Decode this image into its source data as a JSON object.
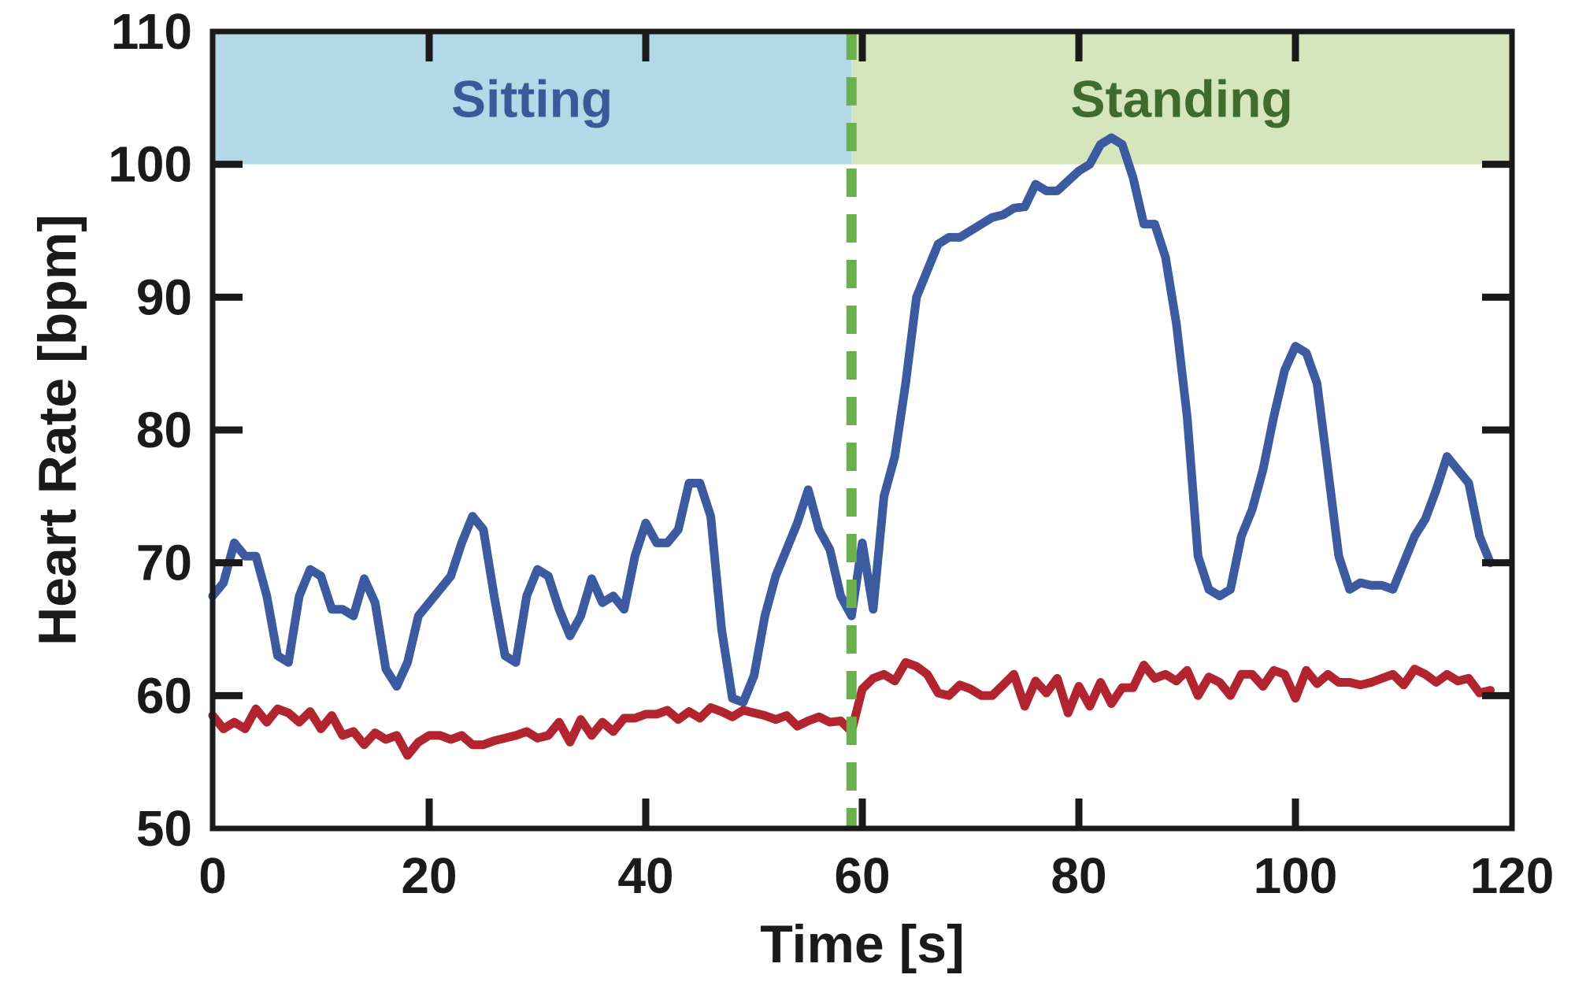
{
  "chart_data": {
    "type": "line",
    "title": "",
    "xlabel": "Time [s]",
    "ylabel": "Heart Rate [bpm]",
    "xlim": [
      0,
      120
    ],
    "ylim": [
      50,
      110
    ],
    "xticks": [
      0,
      20,
      40,
      60,
      80,
      100,
      120
    ],
    "yticks": [
      50,
      60,
      70,
      80,
      90,
      100,
      110
    ],
    "grid": false,
    "regions": [
      {
        "label": "Sitting",
        "x_start": 0,
        "x_end": 59,
        "y_start": 100,
        "y_end": 110,
        "fill": "#b3d9e8",
        "text_color": "#3b5998"
      },
      {
        "label": "Standing",
        "x_start": 59,
        "x_end": 120,
        "y_start": 100,
        "y_end": 110,
        "fill": "#d5e6bd",
        "text_color": "#3f6b2e"
      }
    ],
    "vline": {
      "x": 59,
      "color": "#6ab04c",
      "style": "dashed"
    },
    "series": [
      {
        "color": "#3b5aa0",
        "x": [
          0,
          1,
          2,
          3,
          4,
          5,
          6,
          7,
          8,
          9,
          10,
          11,
          12,
          13,
          14,
          15,
          16,
          17,
          18,
          19,
          21,
          22,
          23,
          24,
          25,
          26,
          27,
          28,
          29,
          30,
          31,
          32,
          33,
          34,
          35,
          36,
          37,
          38,
          39,
          40,
          41,
          42,
          43,
          44,
          45,
          46,
          47,
          48,
          49,
          50,
          51,
          52,
          53,
          54,
          55,
          56,
          57,
          58,
          59,
          60,
          61,
          62,
          63,
          64,
          65,
          66,
          67,
          68,
          69,
          70,
          71,
          72,
          73,
          74,
          75,
          76,
          77,
          78,
          80,
          81,
          82,
          83,
          84,
          85,
          86,
          87,
          88,
          89,
          90,
          91,
          92,
          93,
          94,
          95,
          96,
          97,
          98,
          99,
          100,
          101,
          102,
          103,
          104,
          105,
          106,
          107,
          108,
          109,
          110,
          111,
          112,
          113,
          114,
          115,
          116,
          117,
          118
        ],
        "values": [
          67.5,
          68.5,
          71.5,
          70.5,
          70.5,
          67.5,
          63,
          62.5,
          67.5,
          69.5,
          69,
          66.5,
          66.5,
          66,
          68.8,
          67,
          62,
          60.7,
          62.5,
          66,
          68,
          69,
          71.5,
          73.5,
          72.5,
          67.5,
          63,
          62.5,
          67.5,
          69.5,
          69,
          66.5,
          64.5,
          66,
          68.8,
          67,
          67.5,
          66.5,
          70.5,
          73,
          71.5,
          71.5,
          72.5,
          76,
          76,
          73.5,
          65,
          59.8,
          59.5,
          61.5,
          66,
          69,
          71,
          73,
          75.5,
          72.5,
          71,
          67.5,
          66,
          71.5,
          66.5,
          75,
          78,
          83.5,
          90,
          92,
          94,
          94.5,
          94.5,
          95,
          95.5,
          96,
          96.2,
          96.7,
          96.8,
          98.5,
          98,
          98,
          99.5,
          100,
          101.5,
          102,
          101.5,
          99,
          95.5,
          95.5,
          93,
          88,
          81,
          70.5,
          68,
          67.5,
          68,
          72,
          74,
          77,
          81,
          84.5,
          86.3,
          85.8,
          83.5,
          77,
          70.5,
          68,
          68.5,
          68.3,
          68.3,
          68,
          70,
          72,
          73.3,
          75.5,
          78,
          77,
          76,
          72,
          70
        ],
        "values_note": ""
      },
      {
        "color": "#b22430",
        "x": [
          0,
          1,
          2,
          3,
          4,
          5,
          6,
          7,
          8,
          9,
          10,
          11,
          12,
          13,
          14,
          15,
          16,
          17,
          18,
          19,
          20,
          21,
          22,
          23,
          24,
          25,
          26,
          27,
          28,
          29,
          30,
          31,
          32,
          33,
          34,
          35,
          36,
          37,
          38,
          39,
          40,
          41,
          42,
          43,
          44,
          45,
          46,
          47,
          48,
          49,
          50,
          51,
          52,
          53,
          54,
          55,
          56,
          57,
          58,
          59,
          60,
          61,
          62,
          63,
          64,
          65,
          66,
          67,
          68,
          69,
          70,
          71,
          72,
          73,
          74,
          75,
          76,
          77,
          78,
          79,
          80,
          81,
          82,
          83,
          84,
          85,
          86,
          87,
          88,
          89,
          90,
          91,
          92,
          93,
          94,
          95,
          96,
          97,
          98,
          99,
          100,
          101,
          102,
          103,
          104,
          105,
          106,
          107,
          108,
          109,
          110,
          111,
          112,
          113,
          114,
          115,
          116,
          117,
          118
        ],
        "values": [
          58.5,
          57.5,
          58,
          57.5,
          59,
          58,
          59,
          58.7,
          58,
          58.8,
          57.5,
          58.5,
          57,
          57.3,
          56.3,
          57.2,
          56.7,
          57,
          55.5,
          56.5,
          57,
          57,
          56.7,
          57,
          56.3,
          56.3,
          56.6,
          56.8,
          57,
          57.3,
          56.8,
          57,
          58,
          56.5,
          58.2,
          57,
          58,
          57.3,
          58.3,
          58.3,
          58.6,
          58.6,
          58.9,
          58.2,
          58.8,
          58.3,
          59.1,
          58.8,
          58.4,
          58.9,
          58.7,
          58.5,
          58.2,
          58.5,
          57.7,
          58.1,
          58.4,
          58,
          58.1,
          57.3,
          60.5,
          61.3,
          61.6,
          61.1,
          62.5,
          62.2,
          61.6,
          60.2,
          60,
          60.8,
          60.5,
          60,
          60,
          60.8,
          61.6,
          59.2,
          61.1,
          60.2,
          61.3,
          58.7,
          60.7,
          59.2,
          61,
          59.4,
          60.6,
          60.6,
          62.3,
          61.3,
          61.6,
          61.1,
          61.9,
          60,
          61.4,
          61,
          60,
          61.6,
          61.6,
          60.7,
          61.9,
          61.6,
          59.8,
          61.9,
          60.9,
          61.6,
          61,
          61,
          60.8,
          61,
          61.3,
          61.6,
          60.8,
          62,
          61.6,
          61,
          61.6,
          61.1,
          61.3,
          60.2,
          60.4
        ]
      }
    ]
  }
}
